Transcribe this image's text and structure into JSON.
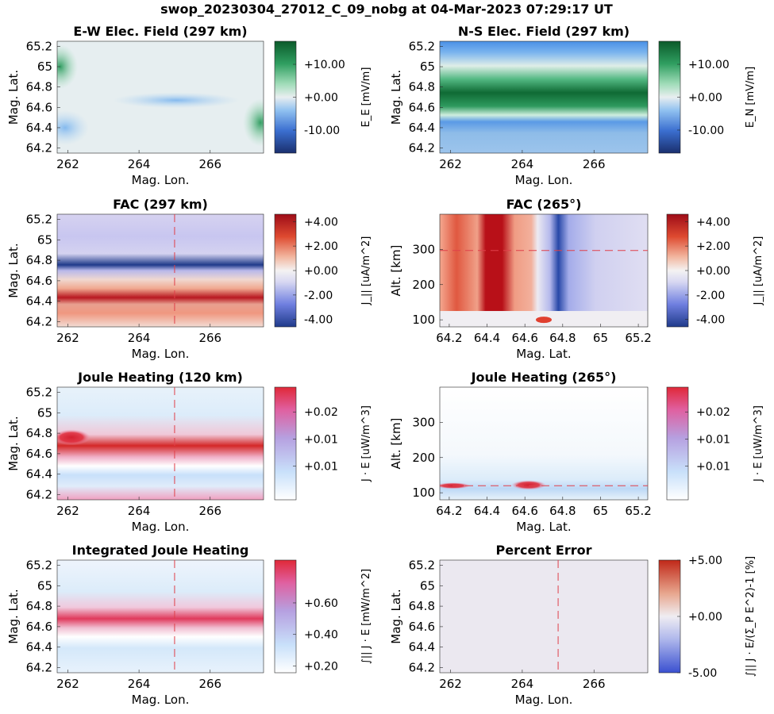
{
  "figure_title": "swop_20230304_27012_C_09_nobg at 04-Mar-2023 07:29:17 UT",
  "colors": {
    "ew_cmap": [
      "#1a2f6e",
      "#3b6fd0",
      "#8fc0f0",
      "#e8eef0",
      "#9fdcb8",
      "#2f9e60",
      "#0b5a2a"
    ],
    "fac_cmap": [
      "#1f3a8a",
      "#6f7fe0",
      "#d8d8f2",
      "#f4f2f2",
      "#f2b7a0",
      "#de4a30",
      "#9e0c18"
    ],
    "joule_cmap": [
      "#ffffff",
      "#c8e0fa",
      "#b6a0e0",
      "#e060a0",
      "#e02838"
    ],
    "err_cmap": [
      "#3a50d0",
      "#b0b8ec",
      "#efedf2",
      "#e8a890",
      "#c02818"
    ],
    "cut_line": "#e0404a"
  },
  "panels": [
    {
      "id": "ew-field",
      "chart_data": {
        "type": "heatmap",
        "title": "E-W Elec. Field (297 km)",
        "xlabel": "Mag. Lon.",
        "ylabel": "Mag. Lat.",
        "xticks": [
          "262",
          "264",
          "266"
        ],
        "yticks": [
          "65.2",
          "65",
          "64.8",
          "64.6",
          "64.4",
          "64.2"
        ],
        "xlim": [
          261.7,
          267.5
        ],
        "ylim": [
          64.15,
          65.25
        ],
        "cut_line": null,
        "colorbar": {
          "label": "E_E [mV/m]",
          "ticks": [
            "+10.00",
            "+0.00",
            "-10.00"
          ],
          "range": [
            -17,
            17
          ]
        },
        "features": "mostly near zero; green (+) at west edge ~65.0 and east edge ~64.4, blue (-) at west edge ~64.4 and along 64.65 band"
      }
    },
    {
      "id": "ns-field",
      "chart_data": {
        "type": "heatmap",
        "title": "N-S Elec. Field (297 km)",
        "xlabel": "Mag. Lon.",
        "ylabel": "Mag. Lat.",
        "xticks": [
          "262",
          "264",
          "266"
        ],
        "yticks": [
          "65.2",
          "65",
          "64.8",
          "64.6",
          "64.4",
          "64.2"
        ],
        "xlim": [
          261.7,
          267.5
        ],
        "ylim": [
          64.15,
          65.25
        ],
        "cut_line": null,
        "colorbar": {
          "label": "E_N [mV/m]",
          "ticks": [
            "+10.00",
            "+0.00",
            "-10.00"
          ],
          "range": [
            -17,
            17
          ]
        },
        "features": "strong positive band at 64.6 (up to ~+17), negative bands near 64.4 and 65.1"
      }
    },
    {
      "id": "fac-297",
      "chart_data": {
        "type": "heatmap",
        "title": "FAC (297 km)",
        "xlabel": "Mag. Lon.",
        "ylabel": "Mag. Lat.",
        "xticks": [
          "262",
          "264",
          "266"
        ],
        "yticks": [
          "65.2",
          "65",
          "64.8",
          "64.6",
          "64.4",
          "64.2"
        ],
        "xlim": [
          261.7,
          267.5
        ],
        "ylim": [
          64.15,
          65.25
        ],
        "cut_line": {
          "axis": "x",
          "value": 265
        },
        "colorbar": {
          "label": "J_|| [uA/m^2]",
          "ticks": [
            "+4.00",
            "+2.00",
            "+0.00",
            "-2.00",
            "-4.00"
          ],
          "range": [
            -4.6,
            4.6
          ]
        },
        "features": "downward (blue) sheet at 64.75 rising eastward; upward (red) band at 64.4 with weaker bands around it"
      }
    },
    {
      "id": "fac-265",
      "chart_data": {
        "type": "heatmap",
        "title": "FAC (265°)",
        "xlabel": "Mag. Lat.",
        "ylabel": "Alt. [km]",
        "xticks": [
          "64.2",
          "64.4",
          "64.6",
          "64.8",
          "65",
          "65.2"
        ],
        "yticks": [
          "300",
          "200",
          "100"
        ],
        "xlim": [
          64.15,
          65.25
        ],
        "ylim": [
          80,
          400
        ],
        "cut_line": {
          "axis": "y",
          "value": 297
        },
        "colorbar": {
          "label": "J_|| [uA/m^2]",
          "ticks": [
            "+4.00",
            "+2.00",
            "+0.00",
            "-2.00",
            "-4.00"
          ],
          "range": [
            -4.6,
            4.6
          ]
        },
        "features": "vertical red columns 64.2-64.6 peaking at 64.4, blue column peaking at 64.8, above ~125 km"
      }
    },
    {
      "id": "joule-120",
      "chart_data": {
        "type": "heatmap",
        "title": "Joule Heating (120 km)",
        "xlabel": "Mag. Lon.",
        "ylabel": "Mag. Lat.",
        "xticks": [
          "262",
          "264",
          "266"
        ],
        "yticks": [
          "65.2",
          "65",
          "64.8",
          "64.6",
          "64.4",
          "64.2"
        ],
        "xlim": [
          261.7,
          267.5
        ],
        "ylim": [
          64.15,
          65.25
        ],
        "cut_line": {
          "axis": "x",
          "value": 265
        },
        "colorbar": {
          "label": "J · E [uW/m^3]",
          "ticks": [
            "+0.02",
            "+0.01",
            "+0.01"
          ],
          "range": [
            0,
            0.028
          ]
        },
        "features": "saturated red band at 64.65 from lon 262.5 to 267.3, red patch at 64.75 near lon 262"
      }
    },
    {
      "id": "joule-265",
      "chart_data": {
        "type": "heatmap",
        "title": "Joule Heating (265°)",
        "xlabel": "Mag. Lat.",
        "ylabel": "Alt. [km]",
        "xticks": [
          "64.2",
          "64.4",
          "64.6",
          "64.8",
          "65",
          "65.2"
        ],
        "yticks": [
          "300",
          "200",
          "100"
        ],
        "xlim": [
          64.15,
          65.25
        ],
        "ylim": [
          80,
          400
        ],
        "cut_line": {
          "axis": "y",
          "value": 120
        },
        "colorbar": {
          "label": "J · E [uW/m^3]",
          "ticks": [
            "+0.02",
            "+0.01",
            "+0.01"
          ],
          "range": [
            0,
            0.028
          ]
        },
        "features": "heating confined below ~150 km, maxima near 120 km at lat 64.2 and 64.6"
      }
    },
    {
      "id": "integrated-joule",
      "chart_data": {
        "type": "heatmap",
        "title": "Integrated Joule Heating",
        "xlabel": "Mag. Lon.",
        "ylabel": "Mag. Lat.",
        "xticks": [
          "262",
          "264",
          "266"
        ],
        "yticks": [
          "65.2",
          "65",
          "64.8",
          "64.6",
          "64.4",
          "64.2"
        ],
        "xlim": [
          261.7,
          267.5
        ],
        "ylim": [
          64.15,
          65.25
        ],
        "cut_line": {
          "axis": "x",
          "value": 265
        },
        "colorbar": {
          "label": "∫|| J · E [mW/m^2]",
          "ticks": [
            "+0.60",
            "+0.40",
            "+0.20"
          ],
          "range": [
            0,
            0.78
          ]
        },
        "features": "band at 64.62 rising eastward, peak ~0.7 near lon 264-266"
      }
    },
    {
      "id": "percent-error",
      "chart_data": {
        "type": "heatmap",
        "title": "Percent Error",
        "xlabel": "Mag. Lon.",
        "ylabel": "Mag. Lat.",
        "xticks": [
          "262",
          "264",
          "266"
        ],
        "yticks": [
          "65.2",
          "65",
          "64.8",
          "64.6",
          "64.4",
          "64.2"
        ],
        "xlim": [
          261.7,
          267.5
        ],
        "ylim": [
          64.15,
          65.25
        ],
        "cut_line": {
          "axis": "x",
          "value": 265
        },
        "colorbar": {
          "label": "∫|| J · E/(Σ_P E^2)-1 [%]",
          "ticks": [
            "+5.00",
            "+0.00",
            "-5.00"
          ],
          "range": [
            -5,
            5
          ]
        },
        "features": "uniform near 0 (slightly positive, ~0.3%)"
      }
    }
  ]
}
